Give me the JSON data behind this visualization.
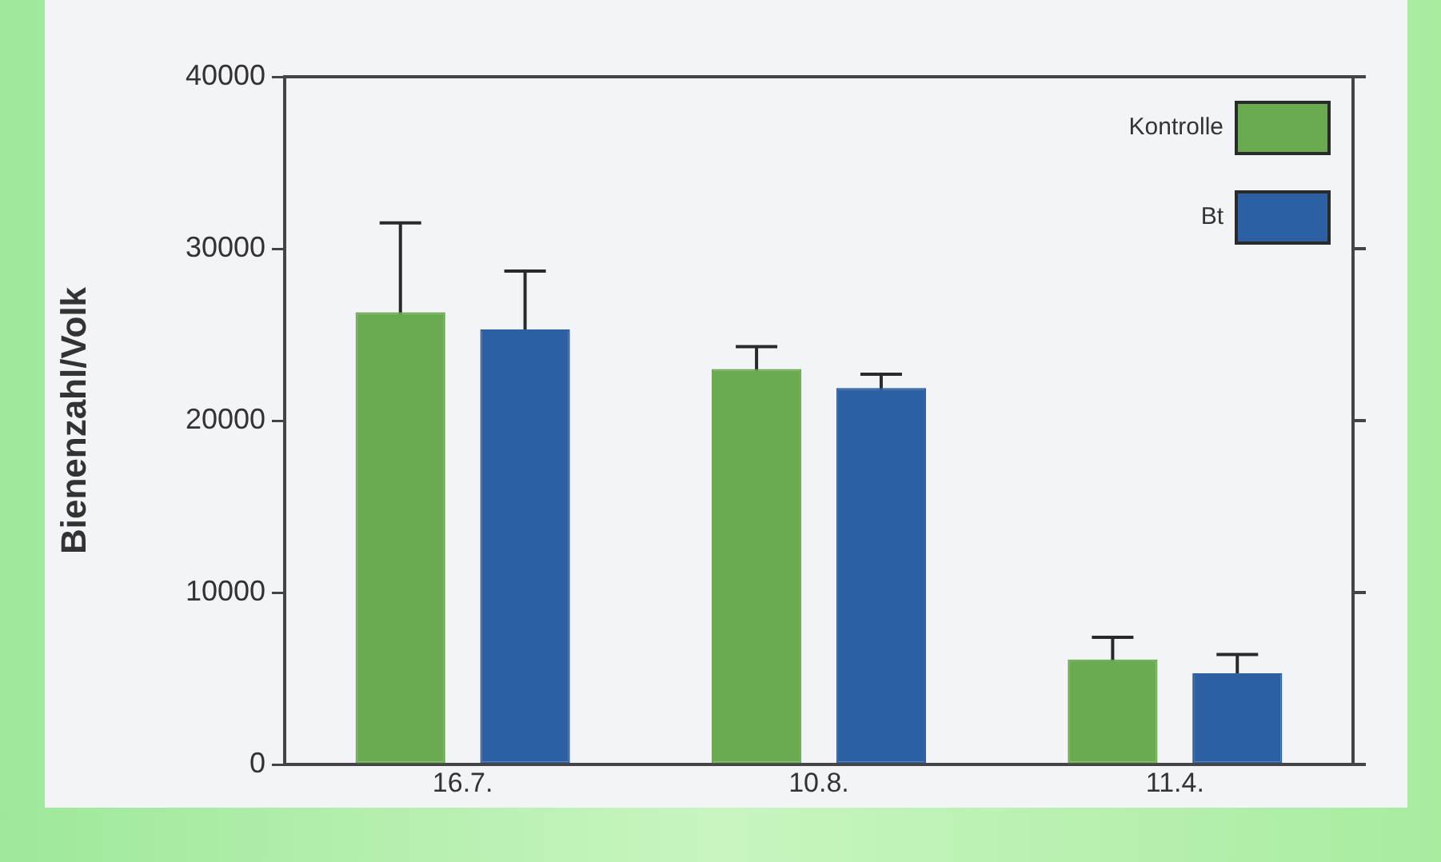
{
  "chart_data": {
    "type": "bar",
    "ylabel": "Bienenzahl/Volk",
    "categories": [
      "16.7.",
      "10.8.",
      "11.4."
    ],
    "series": [
      {
        "name": "Kontrolle",
        "color": "#6aaa50",
        "values": [
          26300,
          23000,
          6100
        ],
        "errors": [
          5200,
          1300,
          1300
        ]
      },
      {
        "name": "Bt",
        "color": "#2d5fa3",
        "values": [
          25300,
          21900,
          5300
        ],
        "errors": [
          3400,
          800,
          1100
        ]
      }
    ],
    "ylim": [
      0,
      40000
    ],
    "yticks": [
      0,
      10000,
      20000,
      30000,
      40000
    ],
    "grid": false,
    "legend": "top right"
  }
}
